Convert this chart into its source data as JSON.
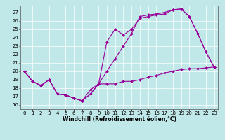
{
  "title": "",
  "xlabel": "Windchill (Refroidissement éolien,°C)",
  "background_color": "#c0e8e8",
  "plot_bg_color": "#c0e8e8",
  "line_color": "#990099",
  "xlim": [
    -0.5,
    23.5
  ],
  "ylim": [
    15.5,
    27.8
  ],
  "yticks": [
    16,
    17,
    18,
    19,
    20,
    21,
    22,
    23,
    24,
    25,
    26,
    27
  ],
  "xticks": [
    0,
    1,
    2,
    3,
    4,
    5,
    6,
    7,
    8,
    9,
    10,
    11,
    12,
    13,
    14,
    15,
    16,
    17,
    18,
    19,
    20,
    21,
    22,
    23
  ],
  "series": [
    {
      "x": [
        0,
        1,
        2,
        3,
        4,
        5,
        6,
        7,
        8,
        9,
        10,
        11,
        12,
        13,
        14,
        15,
        16,
        17,
        18,
        19,
        20,
        21,
        22,
        23
      ],
      "y": [
        20,
        18.8,
        18.3,
        19.0,
        17.3,
        17.2,
        16.8,
        16.5,
        17.3,
        18.5,
        18.5,
        18.5,
        18.8,
        18.8,
        19.0,
        19.3,
        19.5,
        19.8,
        20.0,
        20.2,
        20.3,
        20.3,
        20.4,
        20.5
      ],
      "marker": "D",
      "markersize": 2.0,
      "linewidth": 0.8
    },
    {
      "x": [
        0,
        1,
        2,
        3,
        4,
        5,
        6,
        7,
        8,
        9,
        10,
        11,
        12,
        13,
        14,
        15,
        16,
        17,
        18,
        19,
        20,
        21,
        22,
        23
      ],
      "y": [
        20,
        18.8,
        18.3,
        19.0,
        17.3,
        17.2,
        16.8,
        16.5,
        17.3,
        18.5,
        20.0,
        21.5,
        23.0,
        24.5,
        26.5,
        26.7,
        26.8,
        27.0,
        27.3,
        27.4,
        26.5,
        24.5,
        22.3,
        20.5
      ],
      "marker": "D",
      "markersize": 2.0,
      "linewidth": 0.8
    },
    {
      "x": [
        0,
        1,
        2,
        3,
        4,
        5,
        6,
        7,
        8,
        9,
        10,
        11,
        12,
        13,
        14,
        15,
        16,
        17,
        18,
        19,
        20,
        21,
        22,
        23
      ],
      "y": [
        20,
        18.8,
        18.3,
        19.0,
        17.3,
        17.2,
        16.8,
        16.5,
        17.8,
        18.5,
        23.5,
        25.0,
        24.3,
        25.0,
        26.3,
        26.5,
        26.7,
        26.8,
        27.3,
        27.4,
        26.5,
        24.5,
        22.3,
        20.5
      ],
      "marker": "D",
      "markersize": 2.0,
      "linewidth": 0.8
    }
  ],
  "grid_color": "#ffffff",
  "grid_linewidth": 0.5,
  "tick_fontsize": 5.0,
  "xlabel_fontsize": 5.5,
  "tick_color": "#000000",
  "spine_color": "#555555"
}
